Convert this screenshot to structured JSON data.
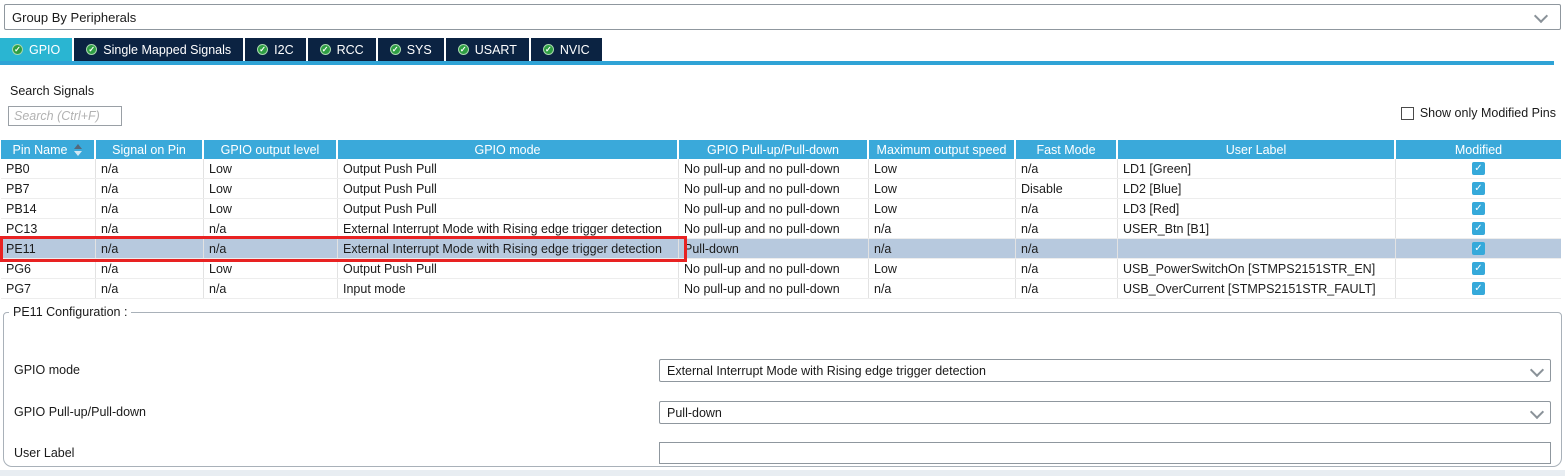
{
  "group_by": {
    "value": "Group By Peripherals"
  },
  "tabs": [
    {
      "label": "GPIO",
      "active": true
    },
    {
      "label": "Single Mapped Signals",
      "active": false
    },
    {
      "label": "I2C",
      "active": false
    },
    {
      "label": "RCC",
      "active": false
    },
    {
      "label": "SYS",
      "active": false
    },
    {
      "label": "USART",
      "active": false
    },
    {
      "label": "NVIC",
      "active": false
    }
  ],
  "search": {
    "label": "Search Signals",
    "placeholder": "Search (Ctrl+F)"
  },
  "filter": {
    "label": "Show only Modified Pins",
    "checked": false
  },
  "table": {
    "columns": [
      "Pin Name",
      "Signal on Pin",
      "GPIO output level",
      "GPIO mode",
      "GPIO Pull-up/Pull-down",
      "Maximum output speed",
      "Fast Mode",
      "User Label",
      "Modified"
    ],
    "rows": [
      {
        "cells": [
          "PB0",
          "n/a",
          "Low",
          "Output Push Pull",
          "No pull-up and no pull-down",
          "Low",
          "n/a",
          "LD1 [Green]"
        ],
        "modified": true,
        "selected": false
      },
      {
        "cells": [
          "PB7",
          "n/a",
          "Low",
          "Output Push Pull",
          "No pull-up and no pull-down",
          "Low",
          "Disable",
          "LD2 [Blue]"
        ],
        "modified": true,
        "selected": false
      },
      {
        "cells": [
          "PB14",
          "n/a",
          "Low",
          "Output Push Pull",
          "No pull-up and no pull-down",
          "Low",
          "n/a",
          "LD3 [Red]"
        ],
        "modified": true,
        "selected": false
      },
      {
        "cells": [
          "PC13",
          "n/a",
          "n/a",
          "External Interrupt Mode with Rising edge trigger detection",
          "No pull-up and no pull-down",
          "n/a",
          "n/a",
          "USER_Btn [B1]"
        ],
        "modified": true,
        "selected": false
      },
      {
        "cells": [
          "PE11",
          "n/a",
          "n/a",
          "External Interrupt Mode with Rising edge trigger detection",
          "Pull-down",
          "n/a",
          "n/a",
          ""
        ],
        "modified": true,
        "selected": true
      },
      {
        "cells": [
          "PG6",
          "n/a",
          "Low",
          "Output Push Pull",
          "No pull-up and no pull-down",
          "Low",
          "n/a",
          "USB_PowerSwitchOn [STMPS2151STR_EN]"
        ],
        "modified": true,
        "selected": false
      },
      {
        "cells": [
          "PG7",
          "n/a",
          "n/a",
          "Input mode",
          "No pull-up and no pull-down",
          "n/a",
          "n/a",
          "USB_OverCurrent [STMPS2151STR_FAULT]"
        ],
        "modified": true,
        "selected": false
      }
    ]
  },
  "config": {
    "legend": "PE11 Configuration :",
    "fields": [
      {
        "label": "GPIO mode",
        "value": "External Interrupt Mode with Rising edge trigger detection",
        "type": "select"
      },
      {
        "label": "GPIO Pull-up/Pull-down",
        "value": "Pull-down",
        "type": "select"
      },
      {
        "label": "User Label",
        "value": "",
        "type": "text"
      }
    ]
  },
  "colors": {
    "header_blue": "#3aa9da",
    "active_tab": "#2ab5d2",
    "inactive_tab": "#0b2342",
    "selected_row": "#b7c9de",
    "selection_outline": "#e82222",
    "check_green": "#2e9e43",
    "modified_check_blue": "#35a9da"
  }
}
